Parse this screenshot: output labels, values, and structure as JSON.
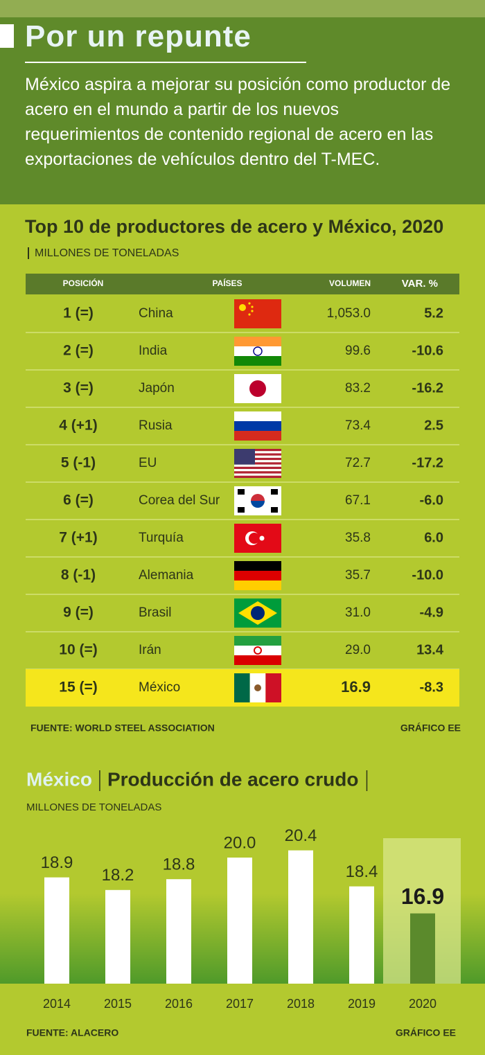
{
  "header": {
    "title": "Por un repunte",
    "description": "México aspira a mejorar su posición como productor de acero en el mundo a partir de los nuevos requerimientos de contenido regional de acero en las exportaciones de vehículos dentro del T-MEC."
  },
  "table": {
    "title": "Top 10 de productores de acero y México, 2020",
    "units": "MILLONES DE TONELADAS",
    "columns": [
      "POSICIÓN",
      "PAÍSES",
      "VOLUMEN",
      "VAR. %"
    ],
    "rows": [
      [
        "1 (=)",
        "China",
        "1,053.0",
        "5.2"
      ],
      [
        "2 (=)",
        "India",
        "99.6",
        "-10.6"
      ],
      [
        "3 (=)",
        "Japón",
        "83.2",
        "-16.2"
      ],
      [
        "4 (+1)",
        "Rusia",
        "73.4",
        "2.5"
      ],
      [
        "5 (-1)",
        "EU",
        "72.7",
        "-17.2"
      ],
      [
        "6 (=)",
        "Corea del Sur",
        "67.1",
        "-6.0"
      ],
      [
        "7 (+1)",
        "Turquía",
        "35.8",
        "6.0"
      ],
      [
        "8 (-1)",
        "Alemania",
        "35.7",
        "-10.0"
      ],
      [
        "9 (=)",
        "Brasil",
        "31.0",
        "-4.9"
      ],
      [
        "10 (=)",
        "Irán",
        "29.0",
        "13.4"
      ],
      [
        "15 (=)",
        "México",
        "16.9",
        "-8.3"
      ]
    ],
    "source": "FUENTE: WORLD STEEL ASSOCIATION",
    "credit": "GRÁFICO EE"
  },
  "chart_data": {
    "type": "bar",
    "location": "México",
    "title": "Producción de acero crudo",
    "units": "MILLONES DE TONELADAS",
    "categories": [
      "2014",
      "2015",
      "2016",
      "2017",
      "2018",
      "2019",
      "2020"
    ],
    "values": [
      18.9,
      18.2,
      18.8,
      20.0,
      20.4,
      18.4,
      16.9
    ],
    "value_labels": [
      "18.9",
      "18.2",
      "18.8",
      "20.0",
      "20.4",
      "18.4",
      "16.9"
    ],
    "colors": [
      "#ffffff",
      "#ffffff",
      "#ffffff",
      "#ffffff",
      "#ffffff",
      "#ffffff",
      "#5b8a2c"
    ],
    "ylim": [
      13,
      21.5
    ],
    "source": "FUENTE: ALACERO",
    "credit": "GRÁFICO EE"
  }
}
